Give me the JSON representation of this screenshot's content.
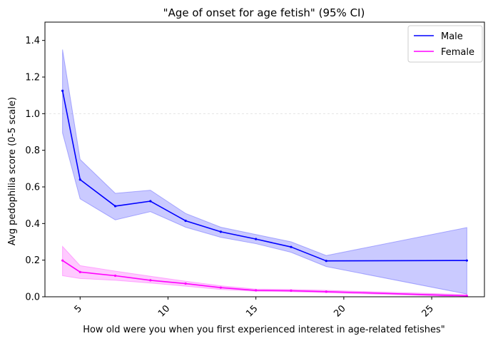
{
  "chart_data": {
    "type": "line",
    "title": "\"Age of onset for age fetish\" (95% CI)",
    "xlabel": "How old were you when you first experienced interest in age-related fetishes\"",
    "ylabel": "Avg pedophilia score (0-5 scale)",
    "xlim": [
      3.0,
      28.0
    ],
    "ylim": [
      0,
      1.5
    ],
    "xticks": [
      5,
      10,
      15,
      20,
      25
    ],
    "xtick_labels": [
      "5",
      "10",
      "15",
      "20",
      "25"
    ],
    "xtick_rotation": 45,
    "yticks": [
      0.0,
      0.2,
      0.4,
      0.6,
      0.8,
      1.0,
      1.2,
      1.4
    ],
    "ytick_labels": [
      "0.0",
      "0.2",
      "0.4",
      "0.6",
      "0.8",
      "1.0",
      "1.2",
      "1.4"
    ],
    "grid": "faint horizontal line at 1.0",
    "legend_position": "top-right",
    "series": [
      {
        "name": "Male",
        "color": "#0000ff",
        "band_color": "#6666ff",
        "x": [
          4,
          5,
          7,
          9,
          11,
          13,
          15,
          17,
          19,
          27
        ],
        "y": [
          1.125,
          0.64,
          0.495,
          0.522,
          0.415,
          0.355,
          0.315,
          0.272,
          0.196,
          0.198
        ],
        "ci_low": [
          0.895,
          0.535,
          0.42,
          0.465,
          0.38,
          0.325,
          0.29,
          0.243,
          0.165,
          0.015
        ],
        "ci_high": [
          1.35,
          0.75,
          0.565,
          0.582,
          0.455,
          0.38,
          0.34,
          0.3,
          0.225,
          0.378
        ]
      },
      {
        "name": "Female",
        "color": "#ff00ff",
        "band_color": "#ff66ff",
        "x": [
          4,
          5,
          7,
          9,
          11,
          13,
          15,
          17,
          19,
          27
        ],
        "y": [
          0.198,
          0.135,
          0.115,
          0.09,
          0.072,
          0.05,
          0.035,
          0.033,
          0.028,
          0.005
        ],
        "ci_low": [
          0.115,
          0.1,
          0.09,
          0.075,
          0.058,
          0.04,
          0.03,
          0.028,
          0.022,
          0.0
        ],
        "ci_high": [
          0.275,
          0.17,
          0.14,
          0.112,
          0.085,
          0.06,
          0.042,
          0.04,
          0.035,
          0.012
        ]
      }
    ]
  }
}
